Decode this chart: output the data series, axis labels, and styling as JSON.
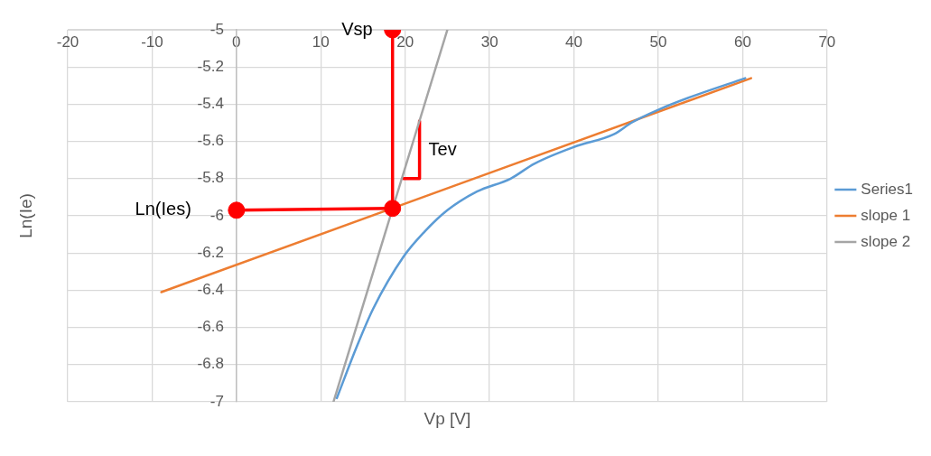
{
  "chart_data": {
    "type": "line",
    "xlabel": "Vp [V]",
    "ylabel": "Ln(Ie)",
    "xlim": [
      -20,
      70
    ],
    "xticks": [
      -20,
      -10,
      0,
      10,
      20,
      30,
      40,
      50,
      60,
      70
    ],
    "ylim": [
      -7,
      -5
    ],
    "yticks": [
      -7,
      -6.8,
      -6.6,
      -6.4,
      -6.2,
      -6,
      -5.8,
      -5.6,
      -5.4,
      -5.2,
      -5
    ],
    "grid": true,
    "legend": "right",
    "series": [
      {
        "name": "Series1",
        "color": "#5b9bd5",
        "x": [
          11.9,
          14.2,
          16.2,
          19.8,
          22.2,
          25.0,
          28.5,
          32.5,
          35.3,
          40.0,
          44.8,
          46.8,
          50.0,
          53.9,
          60.3
        ],
        "values": [
          -6.98,
          -6.71,
          -6.5,
          -6.22,
          -6.09,
          -5.97,
          -5.87,
          -5.8,
          -5.72,
          -5.63,
          -5.56,
          -5.5,
          -5.43,
          -5.36,
          -5.26
        ]
      },
      {
        "name": "slope 1",
        "color": "#ed7d31",
        "x": [
          -8.9,
          61.0
        ],
        "values": [
          -6.41,
          -5.26
        ]
      },
      {
        "name": "slope 2",
        "color": "#a5a5a5",
        "x": [
          11.5,
          25.0
        ],
        "values": [
          -7,
          -5
        ]
      },
      {
        "color": "#ff0000",
        "x": [
          18.5,
          18.5
        ],
        "values": [
          -5,
          -5.96
        ]
      },
      {
        "color": "#ff0000",
        "x": [
          0,
          18.5
        ],
        "values": [
          -5.97,
          -5.96
        ]
      },
      {
        "color": "#ff0000",
        "x": [
          21.7,
          21.7,
          19.8
        ],
        "values": [
          -5.49,
          -5.8,
          -5.8
        ]
      },
      {
        "type": "scatter",
        "marker": "circle",
        "color": "#ff0000",
        "x": [
          18.5,
          18.5,
          0
        ],
        "values": [
          -5,
          -5.96,
          -5.97
        ]
      }
    ],
    "annotations": [
      {
        "text": "Vsp",
        "x": 18.5,
        "y": -5
      },
      {
        "text": "Ln(Ies)",
        "x": 0,
        "y": -5.97
      },
      {
        "text": "Tev",
        "x": 21.7,
        "y": -5.65
      }
    ]
  }
}
